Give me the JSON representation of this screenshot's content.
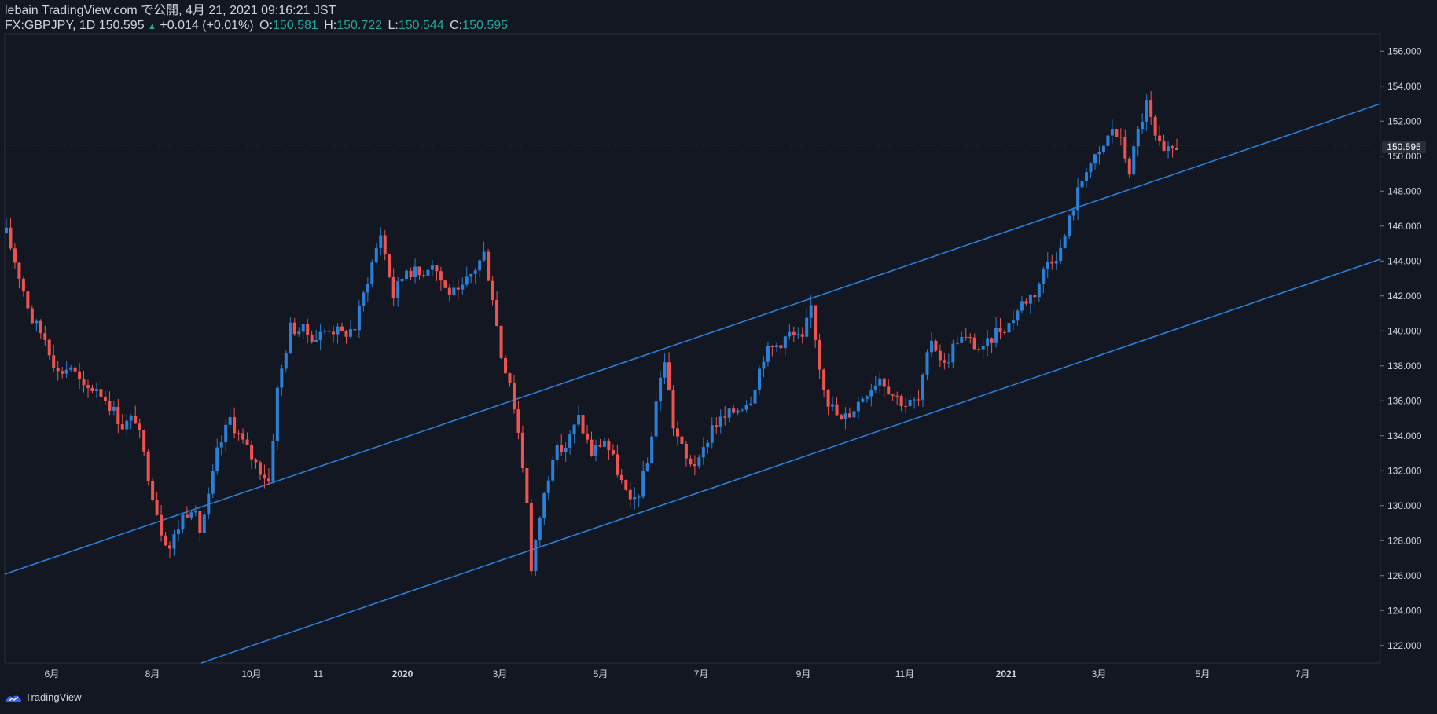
{
  "header": {
    "line1": "lebain TradingView.com で公開, 4月 21, 2021 09:16:21 JST",
    "symbol": "FX:GBPJPY, 1D 150.595",
    "change_arrow": "▲",
    "change": "+0.014 (+0.01%)",
    "o_label": "O:",
    "o_value": "150.581",
    "h_label": "H:",
    "h_value": "150.722",
    "l_label": "L:",
    "l_value": "150.544",
    "c_label": "C:",
    "c_value": "150.595"
  },
  "footer": {
    "brand": "TradingView"
  },
  "colors": {
    "background": "#131722",
    "up": "#2b7fd6",
    "down": "#ef5350",
    "trendline": "#2a7fdb",
    "axis_text": "#d1d4dc",
    "grid": "#2a2e39"
  },
  "chart_data": {
    "type": "candlestick",
    "title": "FX:GBPJPY, 1D",
    "last_price": "150.595",
    "ylim": [
      121,
      157
    ],
    "y_ticks": [
      "122.000",
      "124.000",
      "126.000",
      "128.000",
      "130.000",
      "132.000",
      "134.000",
      "136.000",
      "138.000",
      "140.000",
      "142.000",
      "144.000",
      "146.000",
      "148.000",
      "150.000",
      "152.000",
      "154.000",
      "156.000"
    ],
    "x_ticks": [
      "6月",
      "8月",
      "10月",
      "11",
      "2020",
      "3月",
      "5月",
      "7月",
      "9月",
      "11月",
      "2021",
      "3月",
      "5月",
      "7月"
    ],
    "close_path": [
      {
        "t": 0,
        "v": 145.6
      },
      {
        "t": 3,
        "v": 143.2
      },
      {
        "t": 6,
        "v": 140.6
      },
      {
        "t": 9,
        "v": 139.6
      },
      {
        "t": 12,
        "v": 137.6
      },
      {
        "t": 15,
        "v": 138.0
      },
      {
        "t": 18,
        "v": 136.6
      },
      {
        "t": 21,
        "v": 136.8
      },
      {
        "t": 24,
        "v": 135.8
      },
      {
        "t": 27,
        "v": 134.6
      },
      {
        "t": 30,
        "v": 135.0
      },
      {
        "t": 33,
        "v": 131.8
      },
      {
        "t": 36,
        "v": 128.6
      },
      {
        "t": 38,
        "v": 127.6
      },
      {
        "t": 41,
        "v": 129.4
      },
      {
        "t": 43,
        "v": 130.0
      },
      {
        "t": 45,
        "v": 128.6
      },
      {
        "t": 47,
        "v": 130.4
      },
      {
        "t": 49,
        "v": 133.0
      },
      {
        "t": 52,
        "v": 135.0
      },
      {
        "t": 55,
        "v": 133.6
      },
      {
        "t": 58,
        "v": 132.4
      },
      {
        "t": 61,
        "v": 131.4
      },
      {
        "t": 63,
        "v": 136.6
      },
      {
        "t": 66,
        "v": 140.2
      },
      {
        "t": 69,
        "v": 140.0
      },
      {
        "t": 72,
        "v": 139.6
      },
      {
        "t": 75,
        "v": 140.2
      },
      {
        "t": 78,
        "v": 139.8
      },
      {
        "t": 81,
        "v": 140.2
      },
      {
        "t": 84,
        "v": 143.0
      },
      {
        "t": 87,
        "v": 145.6
      },
      {
        "t": 90,
        "v": 142.0
      },
      {
        "t": 93,
        "v": 143.6
      },
      {
        "t": 96,
        "v": 143.2
      },
      {
        "t": 99,
        "v": 144.0
      },
      {
        "t": 102,
        "v": 142.4
      },
      {
        "t": 105,
        "v": 142.0
      },
      {
        "t": 108,
        "v": 143.2
      },
      {
        "t": 111,
        "v": 144.4
      },
      {
        "t": 113,
        "v": 142.0
      },
      {
        "t": 115,
        "v": 138.6
      },
      {
        "t": 117,
        "v": 137.2
      },
      {
        "t": 119,
        "v": 134.2
      },
      {
        "t": 121,
        "v": 130.4
      },
      {
        "t": 122,
        "v": 126.2
      },
      {
        "t": 124,
        "v": 129.4
      },
      {
        "t": 127,
        "v": 133.0
      },
      {
        "t": 130,
        "v": 133.4
      },
      {
        "t": 133,
        "v": 135.0
      },
      {
        "t": 136,
        "v": 133.0
      },
      {
        "t": 139,
        "v": 133.8
      },
      {
        "t": 142,
        "v": 132.0
      },
      {
        "t": 145,
        "v": 130.0
      },
      {
        "t": 147,
        "v": 130.8
      },
      {
        "t": 149,
        "v": 132.4
      },
      {
        "t": 151,
        "v": 136.0
      },
      {
        "t": 153,
        "v": 138.4
      },
      {
        "t": 155,
        "v": 134.6
      },
      {
        "t": 158,
        "v": 132.6
      },
      {
        "t": 161,
        "v": 132.4
      },
      {
        "t": 164,
        "v": 134.6
      },
      {
        "t": 167,
        "v": 135.0
      },
      {
        "t": 170,
        "v": 135.6
      },
      {
        "t": 173,
        "v": 136.2
      },
      {
        "t": 176,
        "v": 138.6
      },
      {
        "t": 179,
        "v": 139.2
      },
      {
        "t": 182,
        "v": 139.8
      },
      {
        "t": 185,
        "v": 139.4
      },
      {
        "t": 187,
        "v": 141.4
      },
      {
        "t": 189,
        "v": 138.0
      },
      {
        "t": 191,
        "v": 136.0
      },
      {
        "t": 194,
        "v": 134.8
      },
      {
        "t": 197,
        "v": 135.6
      },
      {
        "t": 200,
        "v": 136.6
      },
      {
        "t": 203,
        "v": 137.4
      },
      {
        "t": 206,
        "v": 136.4
      },
      {
        "t": 209,
        "v": 135.8
      },
      {
        "t": 212,
        "v": 136.0
      },
      {
        "t": 215,
        "v": 139.6
      },
      {
        "t": 218,
        "v": 138.0
      },
      {
        "t": 221,
        "v": 139.6
      },
      {
        "t": 224,
        "v": 139.4
      },
      {
        "t": 227,
        "v": 138.8
      },
      {
        "t": 230,
        "v": 140.0
      },
      {
        "t": 233,
        "v": 140.4
      },
      {
        "t": 236,
        "v": 141.6
      },
      {
        "t": 239,
        "v": 142.2
      },
      {
        "t": 242,
        "v": 144.0
      },
      {
        "t": 245,
        "v": 144.6
      },
      {
        "t": 248,
        "v": 147.2
      },
      {
        "t": 251,
        "v": 149.4
      },
      {
        "t": 254,
        "v": 150.0
      },
      {
        "t": 257,
        "v": 151.6
      },
      {
        "t": 259,
        "v": 150.8
      },
      {
        "t": 261,
        "v": 149.2
      },
      {
        "t": 263,
        "v": 151.4
      },
      {
        "t": 265,
        "v": 153.0
      },
      {
        "t": 267,
        "v": 151.0
      },
      {
        "t": 269,
        "v": 150.0
      },
      {
        "t": 272,
        "v": 150.6
      }
    ]
  }
}
